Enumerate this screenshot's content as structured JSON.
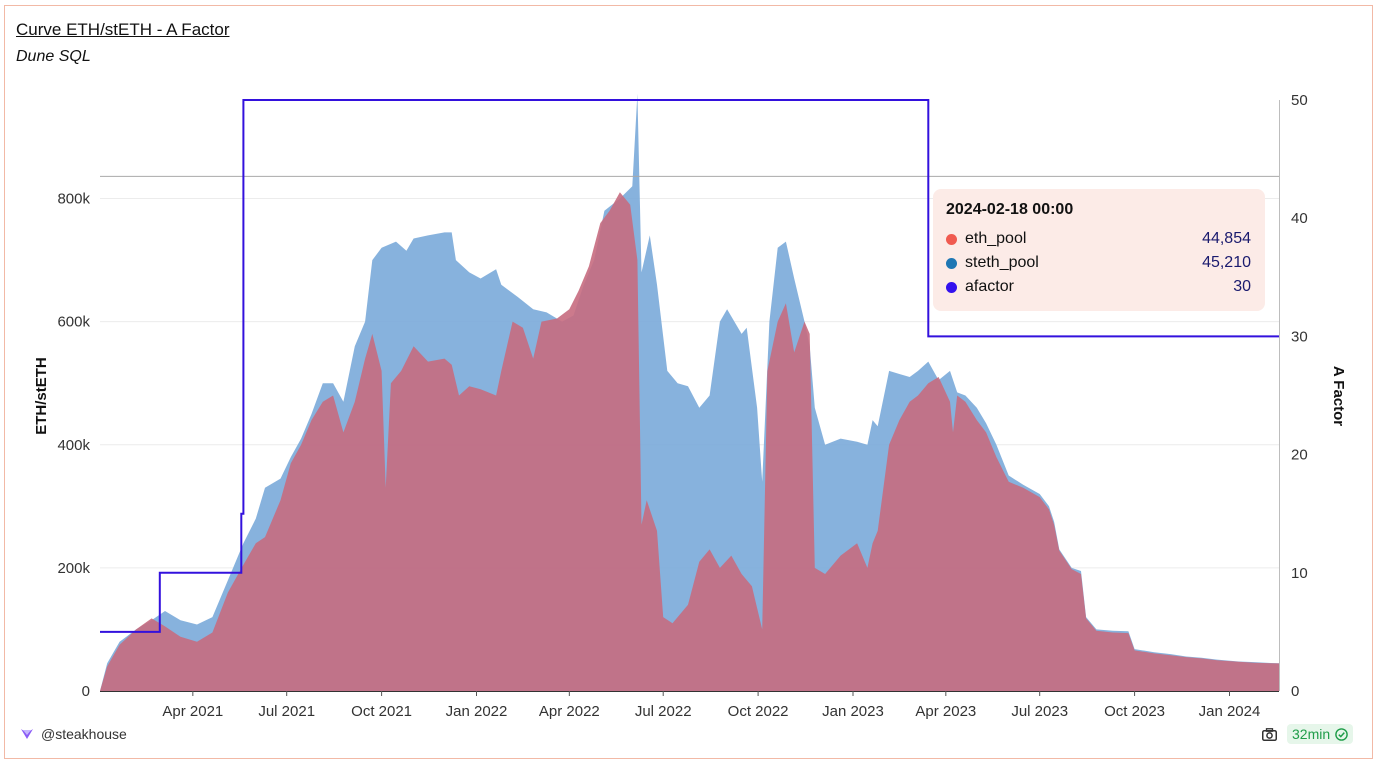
{
  "header": {
    "title": "Curve ETH/stETH - A Factor",
    "subtitle": "Dune SQL"
  },
  "footer": {
    "author": "@steakhouse",
    "refresh": "32min"
  },
  "tooltip": {
    "date": "2024-02-18 00:00",
    "rows": [
      {
        "name": "eth_pool",
        "value": "44,854",
        "color": "#f05a50"
      },
      {
        "name": "steth_pool",
        "value": "45,210",
        "color": "#1f77b4"
      },
      {
        "name": "afactor",
        "value": "30",
        "color": "#3311ee"
      }
    ]
  },
  "colors": {
    "eth_pool": "#c76b7f",
    "steth_pool": "#7aaad9",
    "afactor": "#3311dd",
    "frame": "#f2b9a6"
  },
  "icons": {
    "logo": "steakhouse-logo-icon",
    "camera": "camera-icon",
    "check": "check-circle-icon"
  },
  "chart_data": {
    "type": "area",
    "title": "Curve ETH/stETH - A Factor",
    "ylabel": "ETH/stETH",
    "y2label": "A Factor",
    "ylim": [
      0,
      960000
    ],
    "y2lim": [
      0,
      50
    ],
    "y_ticks": [
      0,
      200000,
      400000,
      600000,
      800000
    ],
    "y_tick_labels": [
      "0",
      "200k",
      "400k",
      "600k",
      "800k"
    ],
    "y2_ticks": [
      0,
      10,
      20,
      30,
      40,
      50
    ],
    "x_range": [
      "2021-01-01",
      "2024-02-18"
    ],
    "x_ticks": [
      "2021-04-01",
      "2021-07-01",
      "2021-10-01",
      "2022-01-01",
      "2022-04-01",
      "2022-07-01",
      "2022-10-01",
      "2023-01-01",
      "2023-04-01",
      "2023-07-01",
      "2023-10-01",
      "2024-01-01"
    ],
    "x_tick_labels": [
      "Apr 2021",
      "Jul 2021",
      "Oct 2021",
      "Jan 2022",
      "Apr 2022",
      "Jul 2022",
      "Oct 2022",
      "Jan 2023",
      "Apr 2023",
      "Jul 2023",
      "Oct 2023",
      "Jan 2024"
    ],
    "reference_line": {
      "y": 836000
    },
    "series": [
      {
        "name": "steth_pool",
        "axis": "left",
        "kind": "area",
        "points": [
          [
            "2021-01-01",
            0
          ],
          [
            "2021-01-08",
            45000
          ],
          [
            "2021-01-20",
            80000
          ],
          [
            "2021-02-05",
            100000
          ],
          [
            "2021-02-20",
            115000
          ],
          [
            "2021-03-05",
            130000
          ],
          [
            "2021-03-20",
            115000
          ],
          [
            "2021-04-05",
            108000
          ],
          [
            "2021-04-20",
            120000
          ],
          [
            "2021-05-05",
            180000
          ],
          [
            "2021-05-20",
            240000
          ],
          [
            "2021-06-01",
            280000
          ],
          [
            "2021-06-10",
            330000
          ],
          [
            "2021-06-25",
            345000
          ],
          [
            "2021-07-05",
            380000
          ],
          [
            "2021-07-15",
            410000
          ],
          [
            "2021-07-25",
            450000
          ],
          [
            "2021-08-05",
            500000
          ],
          [
            "2021-08-15",
            500000
          ],
          [
            "2021-08-25",
            470000
          ],
          [
            "2021-09-05",
            560000
          ],
          [
            "2021-09-15",
            600000
          ],
          [
            "2021-09-22",
            700000
          ],
          [
            "2021-10-01",
            720000
          ],
          [
            "2021-10-15",
            730000
          ],
          [
            "2021-10-25",
            715000
          ],
          [
            "2021-11-01",
            735000
          ],
          [
            "2021-11-15",
            740000
          ],
          [
            "2021-12-01",
            745000
          ],
          [
            "2021-12-08",
            745000
          ],
          [
            "2021-12-12",
            700000
          ],
          [
            "2021-12-25",
            680000
          ],
          [
            "2022-01-05",
            670000
          ],
          [
            "2022-01-20",
            685000
          ],
          [
            "2022-01-25",
            660000
          ],
          [
            "2022-02-10",
            640000
          ],
          [
            "2022-02-25",
            620000
          ],
          [
            "2022-03-10",
            615000
          ],
          [
            "2022-03-25",
            600000
          ],
          [
            "2022-04-05",
            610000
          ],
          [
            "2022-04-15",
            660000
          ],
          [
            "2022-04-25",
            700000
          ],
          [
            "2022-05-05",
            780000
          ],
          [
            "2022-05-20",
            800000
          ],
          [
            "2022-06-01",
            820000
          ],
          [
            "2022-06-06",
            970000
          ],
          [
            "2022-06-10",
            680000
          ],
          [
            "2022-06-18",
            740000
          ],
          [
            "2022-06-25",
            660000
          ],
          [
            "2022-07-05",
            520000
          ],
          [
            "2022-07-15",
            500000
          ],
          [
            "2022-07-25",
            495000
          ],
          [
            "2022-08-05",
            460000
          ],
          [
            "2022-08-15",
            480000
          ],
          [
            "2022-08-25",
            600000
          ],
          [
            "2022-09-01",
            620000
          ],
          [
            "2022-09-15",
            580000
          ],
          [
            "2022-09-20",
            590000
          ],
          [
            "2022-09-30",
            460000
          ],
          [
            "2022-10-05",
            340000
          ],
          [
            "2022-10-12",
            600000
          ],
          [
            "2022-10-20",
            720000
          ],
          [
            "2022-10-28",
            730000
          ],
          [
            "2022-11-05",
            670000
          ],
          [
            "2022-11-15",
            600000
          ],
          [
            "2022-11-20",
            560000
          ],
          [
            "2022-11-25",
            460000
          ],
          [
            "2022-12-05",
            400000
          ],
          [
            "2022-12-20",
            410000
          ],
          [
            "2023-01-05",
            405000
          ],
          [
            "2023-01-15",
            400000
          ],
          [
            "2023-01-20",
            440000
          ],
          [
            "2023-01-25",
            430000
          ],
          [
            "2023-02-05",
            520000
          ],
          [
            "2023-02-15",
            515000
          ],
          [
            "2023-02-25",
            510000
          ],
          [
            "2023-03-05",
            520000
          ],
          [
            "2023-03-15",
            535000
          ],
          [
            "2023-03-25",
            505000
          ],
          [
            "2023-04-05",
            520000
          ],
          [
            "2023-04-12",
            485000
          ],
          [
            "2023-04-20",
            480000
          ],
          [
            "2023-05-01",
            460000
          ],
          [
            "2023-05-10",
            435000
          ],
          [
            "2023-05-20",
            400000
          ],
          [
            "2023-06-01",
            350000
          ],
          [
            "2023-06-15",
            335000
          ],
          [
            "2023-07-01",
            320000
          ],
          [
            "2023-07-10",
            300000
          ],
          [
            "2023-07-15",
            275000
          ],
          [
            "2023-07-20",
            230000
          ],
          [
            "2023-08-01",
            200000
          ],
          [
            "2023-08-10",
            195000
          ],
          [
            "2023-08-15",
            120000
          ],
          [
            "2023-08-25",
            100000
          ],
          [
            "2023-09-10",
            98000
          ],
          [
            "2023-09-25",
            97000
          ],
          [
            "2023-10-01",
            68000
          ],
          [
            "2023-10-20",
            63000
          ],
          [
            "2023-11-05",
            60000
          ],
          [
            "2023-11-20",
            56000
          ],
          [
            "2023-12-05",
            54000
          ],
          [
            "2023-12-20",
            51000
          ],
          [
            "2024-01-10",
            48000
          ],
          [
            "2024-01-25",
            47000
          ],
          [
            "2024-02-10",
            45500
          ],
          [
            "2024-02-18",
            45210
          ]
        ]
      },
      {
        "name": "eth_pool",
        "axis": "left",
        "kind": "area",
        "points": [
          [
            "2021-01-01",
            0
          ],
          [
            "2021-01-08",
            40000
          ],
          [
            "2021-01-20",
            75000
          ],
          [
            "2021-02-05",
            100000
          ],
          [
            "2021-02-20",
            118000
          ],
          [
            "2021-03-05",
            105000
          ],
          [
            "2021-03-20",
            88000
          ],
          [
            "2021-04-05",
            80000
          ],
          [
            "2021-04-20",
            95000
          ],
          [
            "2021-05-05",
            160000
          ],
          [
            "2021-05-20",
            205000
          ],
          [
            "2021-06-01",
            240000
          ],
          [
            "2021-06-10",
            250000
          ],
          [
            "2021-06-25",
            310000
          ],
          [
            "2021-07-05",
            370000
          ],
          [
            "2021-07-15",
            400000
          ],
          [
            "2021-07-25",
            440000
          ],
          [
            "2021-08-05",
            470000
          ],
          [
            "2021-08-15",
            480000
          ],
          [
            "2021-08-25",
            420000
          ],
          [
            "2021-09-05",
            470000
          ],
          [
            "2021-09-15",
            540000
          ],
          [
            "2021-09-22",
            580000
          ],
          [
            "2021-10-01",
            520000
          ],
          [
            "2021-10-05",
            330000
          ],
          [
            "2021-10-10",
            500000
          ],
          [
            "2021-10-20",
            520000
          ],
          [
            "2021-11-01",
            560000
          ],
          [
            "2021-11-15",
            535000
          ],
          [
            "2021-12-01",
            540000
          ],
          [
            "2021-12-08",
            530000
          ],
          [
            "2021-12-15",
            480000
          ],
          [
            "2021-12-25",
            495000
          ],
          [
            "2022-01-05",
            490000
          ],
          [
            "2022-01-20",
            480000
          ],
          [
            "2022-01-25",
            520000
          ],
          [
            "2022-02-05",
            600000
          ],
          [
            "2022-02-15",
            590000
          ],
          [
            "2022-02-25",
            540000
          ],
          [
            "2022-03-05",
            600000
          ],
          [
            "2022-03-20",
            605000
          ],
          [
            "2022-04-01",
            620000
          ],
          [
            "2022-04-10",
            650000
          ],
          [
            "2022-04-20",
            690000
          ],
          [
            "2022-05-01",
            760000
          ],
          [
            "2022-05-10",
            780000
          ],
          [
            "2022-05-20",
            810000
          ],
          [
            "2022-05-30",
            790000
          ],
          [
            "2022-06-06",
            700000
          ],
          [
            "2022-06-10",
            270000
          ],
          [
            "2022-06-15",
            310000
          ],
          [
            "2022-06-25",
            260000
          ],
          [
            "2022-07-01",
            120000
          ],
          [
            "2022-07-10",
            110000
          ],
          [
            "2022-07-25",
            140000
          ],
          [
            "2022-08-05",
            210000
          ],
          [
            "2022-08-15",
            230000
          ],
          [
            "2022-08-25",
            200000
          ],
          [
            "2022-09-05",
            220000
          ],
          [
            "2022-09-15",
            190000
          ],
          [
            "2022-09-25",
            170000
          ],
          [
            "2022-10-05",
            100000
          ],
          [
            "2022-10-10",
            520000
          ],
          [
            "2022-10-20",
            600000
          ],
          [
            "2022-10-28",
            630000
          ],
          [
            "2022-11-05",
            550000
          ],
          [
            "2022-11-15",
            600000
          ],
          [
            "2022-11-20",
            580000
          ],
          [
            "2022-11-25",
            200000
          ],
          [
            "2022-12-05",
            190000
          ],
          [
            "2022-12-20",
            220000
          ],
          [
            "2023-01-05",
            240000
          ],
          [
            "2023-01-15",
            200000
          ],
          [
            "2023-01-20",
            240000
          ],
          [
            "2023-01-25",
            260000
          ],
          [
            "2023-02-05",
            400000
          ],
          [
            "2023-02-15",
            440000
          ],
          [
            "2023-02-25",
            470000
          ],
          [
            "2023-03-05",
            480000
          ],
          [
            "2023-03-15",
            500000
          ],
          [
            "2023-03-25",
            510000
          ],
          [
            "2023-04-05",
            470000
          ],
          [
            "2023-04-08",
            420000
          ],
          [
            "2023-04-12",
            480000
          ],
          [
            "2023-04-20",
            470000
          ],
          [
            "2023-05-01",
            440000
          ],
          [
            "2023-05-10",
            420000
          ],
          [
            "2023-05-20",
            380000
          ],
          [
            "2023-06-01",
            340000
          ],
          [
            "2023-06-15",
            330000
          ],
          [
            "2023-07-01",
            315000
          ],
          [
            "2023-07-10",
            295000
          ],
          [
            "2023-07-15",
            270000
          ],
          [
            "2023-07-20",
            228000
          ],
          [
            "2023-08-01",
            198000
          ],
          [
            "2023-08-10",
            190000
          ],
          [
            "2023-08-15",
            118000
          ],
          [
            "2023-08-25",
            98000
          ],
          [
            "2023-09-10",
            95000
          ],
          [
            "2023-09-25",
            94000
          ],
          [
            "2023-10-01",
            66000
          ],
          [
            "2023-10-20",
            61000
          ],
          [
            "2023-11-05",
            58000
          ],
          [
            "2023-11-20",
            55000
          ],
          [
            "2023-12-05",
            53000
          ],
          [
            "2023-12-20",
            50000
          ],
          [
            "2024-01-10",
            47500
          ],
          [
            "2024-01-25",
            46000
          ],
          [
            "2024-02-10",
            45000
          ],
          [
            "2024-02-18",
            44854
          ]
        ]
      },
      {
        "name": "afactor",
        "axis": "right",
        "kind": "step",
        "points": [
          [
            "2021-01-01",
            5
          ],
          [
            "2021-02-28",
            10
          ],
          [
            "2021-05-18",
            15
          ],
          [
            "2021-05-20",
            50
          ],
          [
            "2023-03-15",
            30
          ],
          [
            "2024-02-18",
            30
          ]
        ]
      }
    ]
  }
}
